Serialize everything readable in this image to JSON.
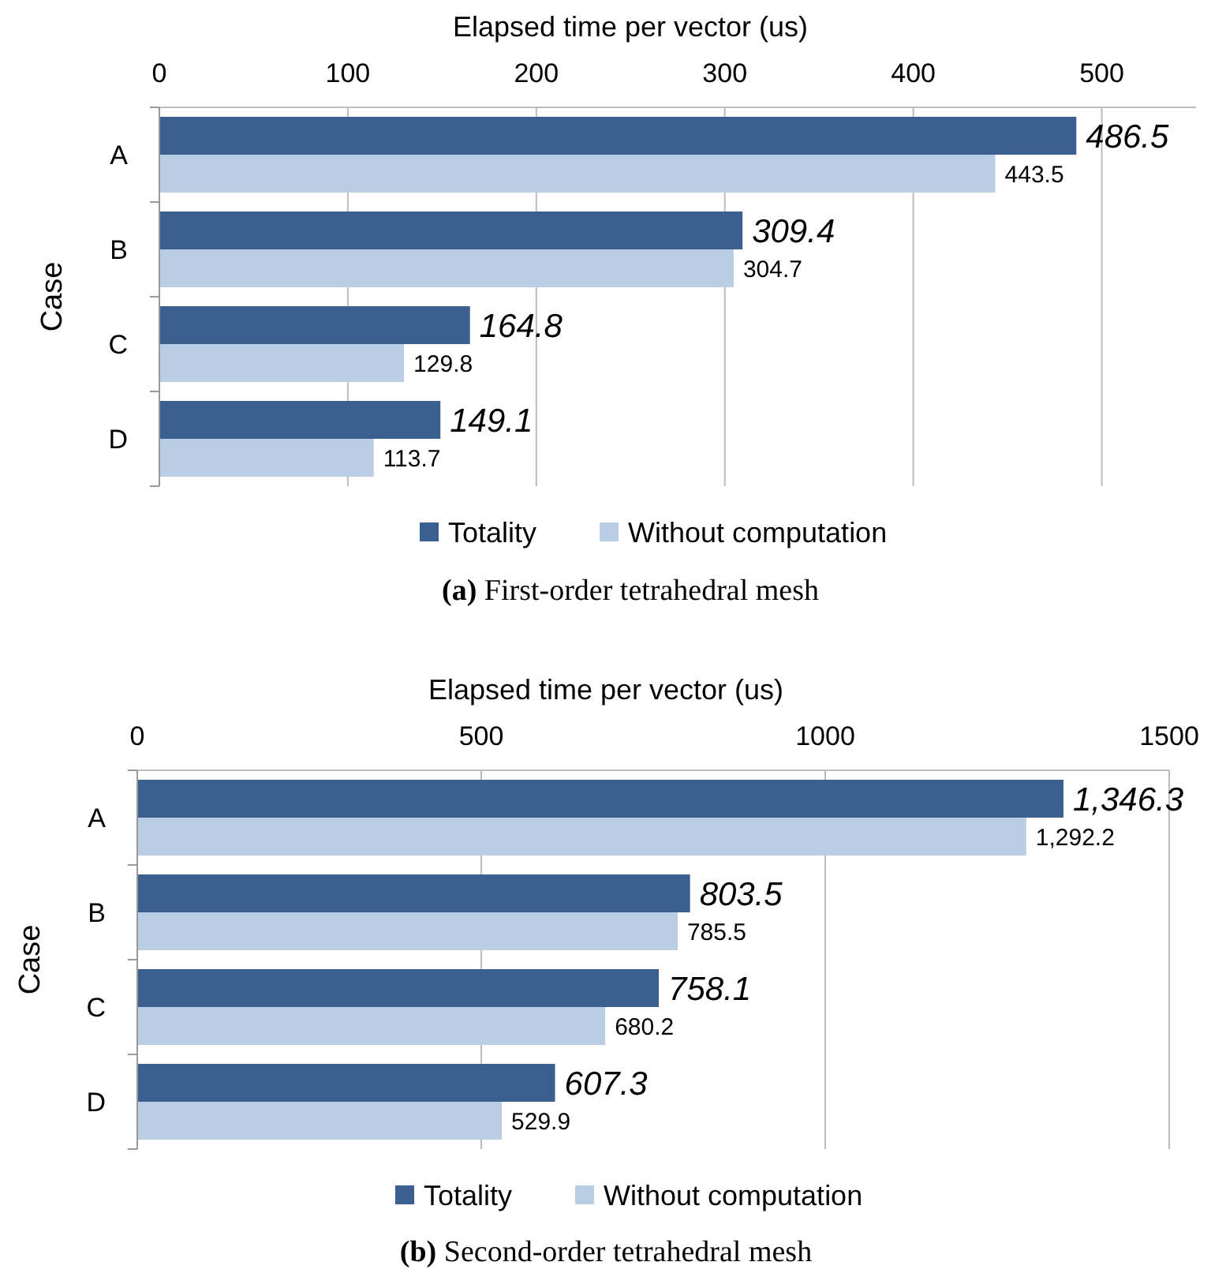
{
  "chart_data": [
    {
      "type": "bar",
      "orientation": "horizontal",
      "xlabel": "Elapsed time per vector (us)",
      "ylabel": "Case",
      "categories": [
        "A",
        "B",
        "C",
        "D"
      ],
      "xlim": [
        0,
        550
      ],
      "xticks": [
        0,
        100,
        200,
        300,
        400,
        500
      ],
      "grid": "x",
      "legend": "bottom",
      "series": [
        {
          "name": "Totality",
          "color": "#3b5f8f",
          "values": [
            486.5,
            309.4,
            164.8,
            149.1
          ],
          "value_labels": [
            "486.5",
            "309.4",
            "164.8",
            "149.1"
          ]
        },
        {
          "name": "Without computation",
          "color": "#b9cde5",
          "values": [
            443.5,
            304.7,
            129.8,
            113.7
          ],
          "value_labels": [
            "443.5",
            "304.7",
            "129.8",
            "113.7"
          ]
        }
      ],
      "annotations": [
        "(a) First-order tetrahedral mesh"
      ]
    },
    {
      "type": "bar",
      "orientation": "horizontal",
      "xlabel": "Elapsed time per vector (us)",
      "ylabel": "Case",
      "categories": [
        "A",
        "B",
        "C",
        "D"
      ],
      "xlim": [
        0,
        1500
      ],
      "xticks": [
        0,
        500,
        1000,
        1500
      ],
      "grid": "x",
      "legend": "bottom",
      "series": [
        {
          "name": "Totality",
          "color": "#3b5f8f",
          "values": [
            1346.3,
            803.5,
            758.1,
            607.3
          ],
          "value_labels": [
            "1,346.3",
            "803.5",
            "758.1",
            "607.3"
          ]
        },
        {
          "name": "Without computation",
          "color": "#b9cde5",
          "values": [
            1292.2,
            785.5,
            680.2,
            529.9
          ],
          "value_labels": [
            "1,292.2",
            "785.5",
            "680.2",
            "529.9"
          ]
        }
      ],
      "annotations": [
        "(b) Second-order tetrahedral mesh"
      ]
    }
  ]
}
